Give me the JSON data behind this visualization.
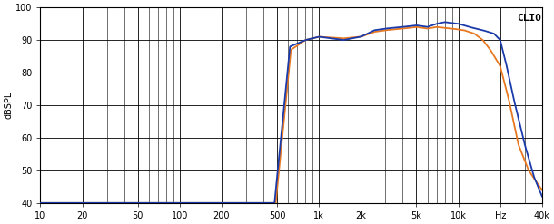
{
  "title": "CLIO",
  "ylabel": "dBSPL",
  "xlabel_hz": "Hz",
  "xlim": [
    10,
    40000
  ],
  "ylim": [
    40,
    100
  ],
  "yticks": [
    40,
    50,
    60,
    70,
    80,
    90,
    100
  ],
  "xticks_major": [
    10,
    20,
    50,
    100,
    200,
    500,
    1000,
    2000,
    5000,
    10000,
    20000,
    40000
  ],
  "xtick_labels": [
    "10",
    "20",
    "50",
    "100",
    "200",
    "500",
    "1k",
    "2k",
    "5k",
    "10k",
    "Hz",
    "40k"
  ],
  "bg_color": "#ffffff",
  "grid_color": "#000000",
  "line_blue": "#1a3aaa",
  "line_orange": "#e87820",
  "line_width": 1.3
}
